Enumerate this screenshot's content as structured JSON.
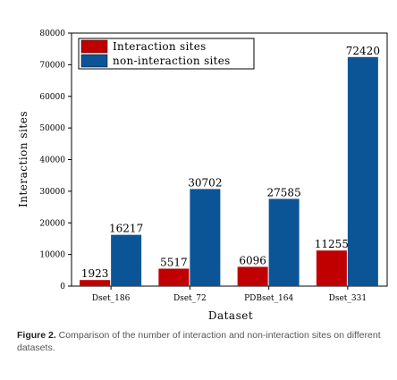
{
  "chart_data": {
    "type": "bar",
    "xlabel": "Dataset",
    "ylabel": "Interaction sites",
    "categories": [
      "Dset_186",
      "Dset_72",
      "PDBset_164",
      "Dset_331"
    ],
    "ylim": [
      0,
      80000
    ],
    "yticks": [
      0,
      10000,
      20000,
      30000,
      40000,
      50000,
      60000,
      70000,
      80000
    ],
    "legend_position": "top-left",
    "grid": false,
    "series": [
      {
        "name": "Interaction sites",
        "color": "#c00000",
        "values": [
          1923,
          5517,
          6096,
          11255
        ]
      },
      {
        "name": "non-interaction sites",
        "color": "#0b5597",
        "values": [
          16217,
          30702,
          27585,
          72420
        ]
      }
    ]
  },
  "caption": {
    "label": "Figure 2.",
    "text": " Comparison of the number of interaction and non-interaction sites on different datasets."
  }
}
